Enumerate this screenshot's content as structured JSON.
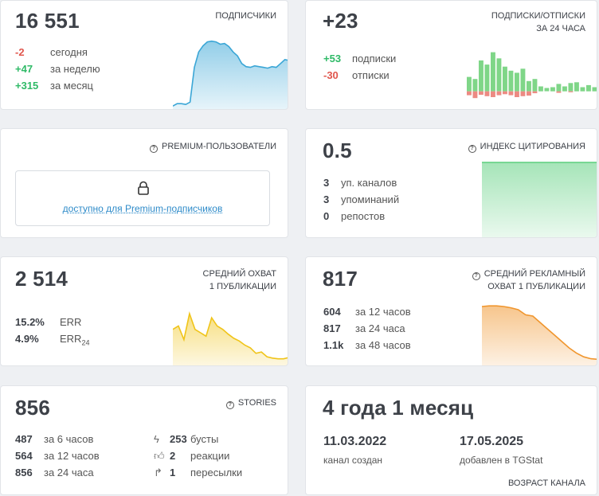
{
  "subscribers": {
    "value": "16 551",
    "label": "ПОДПИСЧИКИ",
    "rows": [
      {
        "num": "-2",
        "text": "сегодня",
        "tone": "neg"
      },
      {
        "num": "+47",
        "text": "за неделю",
        "tone": "pos"
      },
      {
        "num": "+315",
        "text": "за месяц",
        "tone": "pos"
      }
    ],
    "color": "#3aa6d6"
  },
  "subs_unsubs": {
    "value": "+23",
    "label_line1": "ПОДПИСКИ/ОТПИСКИ",
    "label_line2": "ЗА 24 ЧАСА",
    "rows": [
      {
        "num": "+53",
        "text": "подписки",
        "tone": "pos"
      },
      {
        "num": "-30",
        "text": "отписки",
        "tone": "neg"
      }
    ],
    "pos_color": "#7fd688",
    "neg_color": "#ec8a83"
  },
  "premium": {
    "label": "PREMIUM-ПОЛЬЗОВАТЕЛИ",
    "lock_text": "доступно для Premium-подписчиков"
  },
  "citation": {
    "value": "0.5",
    "label": "ИНДЕКС ЦИТИРОВАНИЯ",
    "rows": [
      {
        "num": "3",
        "text": "уп. каналов"
      },
      {
        "num": "3",
        "text": "упоминаний"
      },
      {
        "num": "0",
        "text": "репостов"
      }
    ],
    "color": "#5ccf7e"
  },
  "reach": {
    "value": "2 514",
    "label_line1": "СРЕДНИЙ ОХВАТ",
    "label_line2": "1 ПУБЛИКАЦИИ",
    "rows": [
      {
        "num": "15.2%",
        "text": "ERR"
      },
      {
        "num": "4.9%",
        "text": "ERR",
        "sub": "24"
      }
    ],
    "color": "#f0c419"
  },
  "ad_reach": {
    "value": "817",
    "label_line1": "СРЕДНИЙ РЕКЛАМНЫЙ",
    "label_line2": "ОХВАТ 1 ПУБЛИКАЦИИ",
    "rows": [
      {
        "num": "604",
        "text": "за 12 часов"
      },
      {
        "num": "817",
        "text": "за 24 часа"
      },
      {
        "num": "1.1k",
        "text": "за 48 часов"
      }
    ],
    "color": "#f0962e"
  },
  "stories": {
    "value": "856",
    "label": "STORIES",
    "left_rows": [
      {
        "num": "487",
        "text": "за 6 часов"
      },
      {
        "num": "564",
        "text": "за 12 часов"
      },
      {
        "num": "856",
        "text": "за 24 часа"
      }
    ],
    "right_rows": [
      {
        "icon": "lightning-icon",
        "num": "253",
        "text": "бусты"
      },
      {
        "icon": "thumbs-up-icon",
        "num": "2",
        "text": "реакции"
      },
      {
        "icon": "share-arrow-icon",
        "num": "1",
        "text": "пересылки"
      }
    ]
  },
  "age": {
    "value": "4 года 1 месяц",
    "created_date": "11.03.2022",
    "created_label": "канал создан",
    "added_date": "17.05.2025",
    "added_label": "добавлен в TGStat",
    "label": "ВОЗРАСТ КАНАЛА"
  },
  "chart_data": [
    {
      "type": "area",
      "name": "subscribers-trend",
      "y": [
        0.05,
        0.08,
        0.08,
        0.07,
        0.1,
        0.55,
        0.75,
        0.83,
        0.88,
        0.89,
        0.88,
        0.85,
        0.86,
        0.82,
        0.75,
        0.7,
        0.6,
        0.56,
        0.55,
        0.57,
        0.56,
        0.55,
        0.54,
        0.56,
        0.55,
        0.6,
        0.65,
        0.64
      ],
      "ylim": [
        0,
        1
      ]
    },
    {
      "type": "bar",
      "name": "subs-unsubs-24h",
      "positive": [
        0.35,
        0.3,
        0.75,
        0.65,
        0.95,
        0.8,
        0.6,
        0.5,
        0.45,
        0.55,
        0.25,
        0.3,
        0.12,
        0.08,
        0.1,
        0.18,
        0.12,
        0.2,
        0.22,
        0.1,
        0.15,
        0.1
      ],
      "negative": [
        0.2,
        0.35,
        0.18,
        0.25,
        0.3,
        0.2,
        0.15,
        0.2,
        0.3,
        0.25,
        0.22,
        0.1,
        0.0,
        0.0,
        0.0,
        0.08,
        0.0,
        0.05,
        0.0,
        0.0,
        0.0,
        0.0
      ],
      "ylim": [
        -1,
        1
      ]
    },
    {
      "type": "area",
      "name": "citation-index",
      "y": [
        0.98,
        0.98
      ],
      "ylim": [
        0,
        1
      ]
    },
    {
      "type": "area",
      "name": "reach-trend",
      "y": [
        0.55,
        0.6,
        0.4,
        0.78,
        0.55,
        0.5,
        0.45,
        0.72,
        0.6,
        0.55,
        0.48,
        0.42,
        0.38,
        0.32,
        0.28,
        0.2,
        0.22,
        0.15,
        0.13,
        0.12,
        0.12,
        0.14
      ],
      "ylim": [
        0,
        1
      ]
    },
    {
      "type": "area",
      "name": "ad-reach-trend",
      "y": [
        0.95,
        0.96,
        0.96,
        0.95,
        0.93,
        0.9,
        0.82,
        0.8,
        0.7,
        0.6,
        0.5,
        0.4,
        0.3,
        0.22,
        0.16,
        0.13,
        0.12
      ],
      "ylim": [
        0,
        1
      ]
    }
  ]
}
